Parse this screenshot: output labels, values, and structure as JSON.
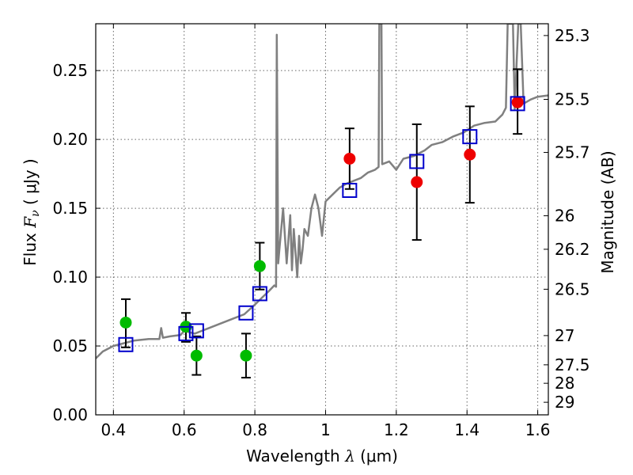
{
  "chart_data": {
    "type": "scatter",
    "title": "",
    "xlabel": {
      "prefix": "Wavelength  ",
      "symbol": "λ",
      "unit": " (μm)"
    },
    "ylabel": {
      "prefix": "Flux  ",
      "symbol": "F",
      "subscript": "ν",
      "unit": "  ( μJy )"
    },
    "y2label": "Magnitude (AB)",
    "xlim": [
      0.35,
      1.63
    ],
    "ylim": [
      0.0,
      0.284
    ],
    "grid": true,
    "x_ticks": [
      {
        "value": 0.4,
        "label": "0.4"
      },
      {
        "value": 0.6,
        "label": "0.6"
      },
      {
        "value": 0.8,
        "label": "0.8"
      },
      {
        "value": 1.0,
        "label": "1"
      },
      {
        "value": 1.2,
        "label": "1.2"
      },
      {
        "value": 1.4,
        "label": "1.4"
      },
      {
        "value": 1.6,
        "label": "1.6"
      }
    ],
    "y_ticks": [
      {
        "value": 0.0,
        "label": "0.00"
      },
      {
        "value": 0.05,
        "label": "0.05"
      },
      {
        "value": 0.1,
        "label": "0.10"
      },
      {
        "value": 0.15,
        "label": "0.15"
      },
      {
        "value": 0.2,
        "label": "0.20"
      },
      {
        "value": 0.25,
        "label": "0.25"
      }
    ],
    "y2_ticks": [
      {
        "value": 25.3,
        "label": "25.3"
      },
      {
        "value": 25.5,
        "label": "25.5"
      },
      {
        "value": 25.7,
        "label": "25.7"
      },
      {
        "value": 26.0,
        "label": "26"
      },
      {
        "value": 26.2,
        "label": "26.2"
      },
      {
        "value": 26.5,
        "label": "26.5"
      },
      {
        "value": 27.0,
        "label": "27"
      },
      {
        "value": 27.5,
        "label": "27.5"
      },
      {
        "value": 28.0,
        "label": "28"
      },
      {
        "value": 29.0,
        "label": "29"
      }
    ],
    "colors": {
      "model": "#808080",
      "green": "#00bb00",
      "red": "#ee0000",
      "square": "#0000cc",
      "errorbar": "#000000",
      "grid": "#666666"
    },
    "model_spectrum": [
      [
        0.35,
        0.041
      ],
      [
        0.37,
        0.046
      ],
      [
        0.4,
        0.05
      ],
      [
        0.43,
        0.052
      ],
      [
        0.46,
        0.054
      ],
      [
        0.5,
        0.055
      ],
      [
        0.53,
        0.055
      ],
      [
        0.535,
        0.063
      ],
      [
        0.54,
        0.056
      ],
      [
        0.56,
        0.057
      ],
      [
        0.59,
        0.058
      ],
      [
        0.6,
        0.061
      ],
      [
        0.63,
        0.059
      ],
      [
        0.66,
        0.062
      ],
      [
        0.7,
        0.066
      ],
      [
        0.74,
        0.07
      ],
      [
        0.77,
        0.073
      ],
      [
        0.8,
        0.08
      ],
      [
        0.82,
        0.085
      ],
      [
        0.84,
        0.09
      ],
      [
        0.855,
        0.094
      ],
      [
        0.86,
        0.093
      ],
      [
        0.862,
        0.276
      ],
      [
        0.866,
        0.11
      ],
      [
        0.87,
        0.122
      ],
      [
        0.88,
        0.15
      ],
      [
        0.89,
        0.11
      ],
      [
        0.9,
        0.145
      ],
      [
        0.905,
        0.105
      ],
      [
        0.91,
        0.135
      ],
      [
        0.92,
        0.1
      ],
      [
        0.925,
        0.13
      ],
      [
        0.93,
        0.11
      ],
      [
        0.935,
        0.12
      ],
      [
        0.94,
        0.135
      ],
      [
        0.95,
        0.13
      ],
      [
        0.96,
        0.15
      ],
      [
        0.97,
        0.16
      ],
      [
        0.98,
        0.15
      ],
      [
        0.99,
        0.13
      ],
      [
        1.0,
        0.155
      ],
      [
        1.02,
        0.16
      ],
      [
        1.04,
        0.165
      ],
      [
        1.06,
        0.168
      ],
      [
        1.08,
        0.17
      ],
      [
        1.1,
        0.172
      ],
      [
        1.12,
        0.176
      ],
      [
        1.14,
        0.178
      ],
      [
        1.15,
        0.18
      ],
      [
        1.152,
        0.284
      ],
      [
        1.158,
        0.284
      ],
      [
        1.16,
        0.182
      ],
      [
        1.18,
        0.184
      ],
      [
        1.2,
        0.178
      ],
      [
        1.22,
        0.186
      ],
      [
        1.25,
        0.188
      ],
      [
        1.28,
        0.192
      ],
      [
        1.3,
        0.196
      ],
      [
        1.33,
        0.198
      ],
      [
        1.36,
        0.202
      ],
      [
        1.39,
        0.205
      ],
      [
        1.42,
        0.21
      ],
      [
        1.45,
        0.212
      ],
      [
        1.48,
        0.213
      ],
      [
        1.5,
        0.218
      ],
      [
        1.51,
        0.223
      ],
      [
        1.515,
        0.284
      ],
      [
        1.53,
        0.284
      ],
      [
        1.535,
        0.222
      ],
      [
        1.545,
        0.284
      ],
      [
        1.552,
        0.284
      ],
      [
        1.56,
        0.226
      ],
      [
        1.58,
        0.229
      ],
      [
        1.6,
        0.231
      ],
      [
        1.63,
        0.232
      ]
    ],
    "model_photometry": [
      {
        "x": 0.435,
        "y": 0.051
      },
      {
        "x": 0.605,
        "y": 0.059
      },
      {
        "x": 0.635,
        "y": 0.061
      },
      {
        "x": 0.775,
        "y": 0.074
      },
      {
        "x": 0.814,
        "y": 0.088
      },
      {
        "x": 1.068,
        "y": 0.163
      },
      {
        "x": 1.258,
        "y": 0.184
      },
      {
        "x": 1.408,
        "y": 0.202
      },
      {
        "x": 1.543,
        "y": 0.226
      }
    ],
    "green_points": [
      {
        "x": 0.435,
        "y": 0.067
      },
      {
        "x": 0.605,
        "y": 0.064
      },
      {
        "x": 0.635,
        "y": 0.043
      },
      {
        "x": 0.775,
        "y": 0.043
      },
      {
        "x": 0.814,
        "y": 0.108
      }
    ],
    "red_points": [
      {
        "x": 1.068,
        "y": 0.186
      },
      {
        "x": 1.258,
        "y": 0.169
      },
      {
        "x": 1.408,
        "y": 0.189
      },
      {
        "x": 1.543,
        "y": 0.227
      }
    ],
    "error_bars": [
      {
        "x": 0.435,
        "low": 0.049,
        "high": 0.084
      },
      {
        "x": 0.605,
        "low": 0.053,
        "high": 0.074
      },
      {
        "x": 0.635,
        "low": 0.029,
        "high": 0.057
      },
      {
        "x": 0.775,
        "low": 0.027,
        "high": 0.059
      },
      {
        "x": 0.814,
        "low": 0.091,
        "high": 0.125
      },
      {
        "x": 1.068,
        "low": 0.164,
        "high": 0.208
      },
      {
        "x": 1.258,
        "low": 0.127,
        "high": 0.211
      },
      {
        "x": 1.408,
        "low": 0.154,
        "high": 0.224
      },
      {
        "x": 1.543,
        "low": 0.204,
        "high": 0.251
      }
    ]
  }
}
